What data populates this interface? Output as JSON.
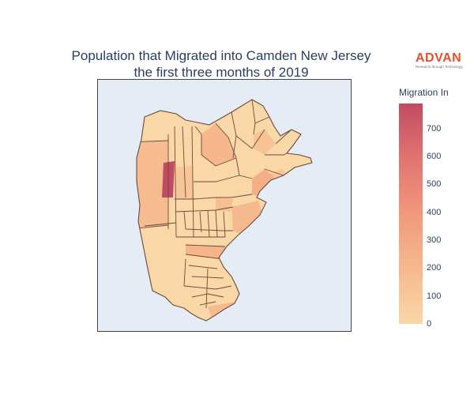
{
  "title_line1": "Population that Migrated into Camden New Jersey",
  "title_line2": "the first three months of 2019",
  "logo": {
    "name": "ADVAN",
    "tagline": "Research through Technology"
  },
  "legend": {
    "title": "Migration In",
    "min": 0,
    "max": 790,
    "ticks": [
      "0",
      "100",
      "200",
      "300",
      "400",
      "500",
      "600",
      "700"
    ],
    "colors": [
      "#f9d7a6",
      "#f6b98d",
      "#f1987c",
      "#e1746f",
      "#c24a63"
    ]
  },
  "map": {
    "background": "#e5ecf6",
    "border_color": "#6b4a3c",
    "regions": [
      {
        "id": "nw-edge",
        "value": 40
      },
      {
        "id": "northwest",
        "value": 70
      },
      {
        "id": "north-central",
        "value": 210
      },
      {
        "id": "north-top",
        "value": 60
      },
      {
        "id": "north-east-a",
        "value": 90
      },
      {
        "id": "north-east-b",
        "value": 140
      },
      {
        "id": "east-arm",
        "value": 110
      },
      {
        "id": "west-big",
        "value": 180
      },
      {
        "id": "west-strip",
        "value": 790
      },
      {
        "id": "west-adjacent",
        "value": 120
      },
      {
        "id": "center-a",
        "value": 50
      },
      {
        "id": "center-b",
        "value": 80
      },
      {
        "id": "center-c",
        "value": 150
      },
      {
        "id": "center-east",
        "value": 260
      },
      {
        "id": "east-b",
        "value": 200
      },
      {
        "id": "south-west",
        "value": 60
      },
      {
        "id": "south-mid-a",
        "value": 40
      },
      {
        "id": "south-mid-b",
        "value": 230
      },
      {
        "id": "south-mid-c",
        "value": 70
      },
      {
        "id": "south",
        "value": 50
      },
      {
        "id": "south-tip",
        "value": 190
      }
    ]
  }
}
